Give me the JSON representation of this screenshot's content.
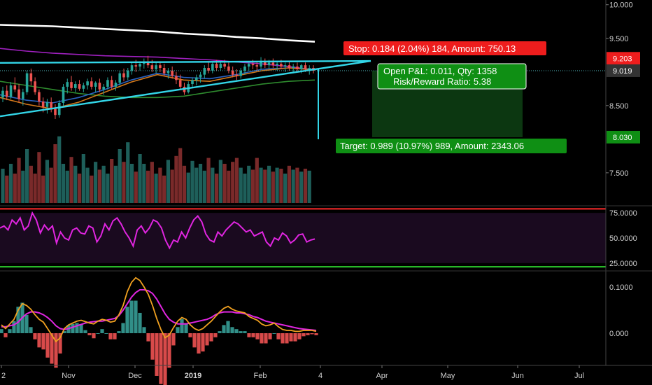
{
  "chart_data": {
    "type": "candlestick",
    "price_axis": {
      "ticks": [
        7.5,
        8.5,
        9.5,
        10.0
      ],
      "tick_labels": [
        "7.500",
        "8.500",
        "9.500",
        "10.000"
      ],
      "range": [
        7.03,
        10.07
      ]
    },
    "last_price": {
      "value": 9.019,
      "label": "9.019"
    },
    "stop_level": {
      "value": 9.203,
      "label": "9.203"
    },
    "target_level": {
      "value": 8.03,
      "label": "8.030"
    },
    "time_axis": {
      "labels": [
        "2",
        "Nov",
        "Dec",
        "2019",
        "Feb",
        "4",
        "Apr",
        "May",
        "Jun",
        "Jul"
      ],
      "bold": [
        "2019"
      ]
    },
    "position": {
      "stop_text": "Stop: 0.184 (2.04%) 184, Amount: 750.13",
      "pnl_text": "Open P&L: 0.011, Qty: 1358",
      "rr_text": "Risk/Reward Ratio: 5.38",
      "target_text": "Target: 0.989 (10.97%) 989, Amount: 2343.06",
      "entry": 9.019,
      "stop": 9.203,
      "target": 8.03
    },
    "candles": [
      {
        "o": 8.62,
        "h": 8.78,
        "l": 8.55,
        "c": 8.72
      },
      {
        "o": 8.72,
        "h": 8.8,
        "l": 8.58,
        "c": 8.63
      },
      {
        "o": 8.63,
        "h": 8.85,
        "l": 8.6,
        "c": 8.8
      },
      {
        "o": 8.8,
        "h": 8.92,
        "l": 8.7,
        "c": 8.74
      },
      {
        "o": 8.74,
        "h": 8.82,
        "l": 8.55,
        "c": 8.6
      },
      {
        "o": 8.6,
        "h": 8.75,
        "l": 8.5,
        "c": 8.7
      },
      {
        "o": 8.7,
        "h": 9.02,
        "l": 8.66,
        "c": 8.98
      },
      {
        "o": 8.98,
        "h": 9.05,
        "l": 8.8,
        "c": 8.86
      },
      {
        "o": 8.86,
        "h": 8.92,
        "l": 8.66,
        "c": 8.7
      },
      {
        "o": 8.7,
        "h": 8.74,
        "l": 8.5,
        "c": 8.56
      },
      {
        "o": 8.56,
        "h": 8.62,
        "l": 8.4,
        "c": 8.48
      },
      {
        "o": 8.48,
        "h": 8.6,
        "l": 8.38,
        "c": 8.55
      },
      {
        "o": 8.55,
        "h": 8.62,
        "l": 8.4,
        "c": 8.45
      },
      {
        "o": 8.45,
        "h": 8.52,
        "l": 8.3,
        "c": 8.36
      },
      {
        "o": 8.36,
        "h": 8.58,
        "l": 8.32,
        "c": 8.54
      },
      {
        "o": 8.54,
        "h": 8.82,
        "l": 8.5,
        "c": 8.78
      },
      {
        "o": 8.78,
        "h": 8.9,
        "l": 8.68,
        "c": 8.85
      },
      {
        "o": 8.85,
        "h": 8.94,
        "l": 8.72,
        "c": 8.76
      },
      {
        "o": 8.76,
        "h": 8.86,
        "l": 8.7,
        "c": 8.82
      },
      {
        "o": 8.82,
        "h": 8.88,
        "l": 8.72,
        "c": 8.75
      },
      {
        "o": 8.75,
        "h": 8.84,
        "l": 8.7,
        "c": 8.8
      },
      {
        "o": 8.8,
        "h": 8.9,
        "l": 8.74,
        "c": 8.86
      },
      {
        "o": 8.86,
        "h": 8.92,
        "l": 8.74,
        "c": 8.78
      },
      {
        "o": 8.78,
        "h": 8.86,
        "l": 8.7,
        "c": 8.84
      },
      {
        "o": 8.84,
        "h": 8.9,
        "l": 8.7,
        "c": 8.74
      },
      {
        "o": 8.74,
        "h": 8.82,
        "l": 8.66,
        "c": 8.78
      },
      {
        "o": 8.78,
        "h": 8.92,
        "l": 8.74,
        "c": 8.88
      },
      {
        "o": 8.88,
        "h": 8.94,
        "l": 8.74,
        "c": 8.78
      },
      {
        "o": 8.78,
        "h": 8.88,
        "l": 8.72,
        "c": 8.84
      },
      {
        "o": 8.84,
        "h": 9.02,
        "l": 8.8,
        "c": 8.98
      },
      {
        "o": 8.98,
        "h": 9.05,
        "l": 8.86,
        "c": 8.92
      },
      {
        "o": 8.92,
        "h": 9.06,
        "l": 8.88,
        "c": 9.02
      },
      {
        "o": 9.02,
        "h": 9.14,
        "l": 8.96,
        "c": 9.1
      },
      {
        "o": 9.1,
        "h": 9.18,
        "l": 9.0,
        "c": 9.08
      },
      {
        "o": 9.08,
        "h": 9.16,
        "l": 9.02,
        "c": 9.12
      },
      {
        "o": 9.12,
        "h": 9.2,
        "l": 9.05,
        "c": 9.14
      },
      {
        "o": 9.14,
        "h": 9.24,
        "l": 9.06,
        "c": 9.1
      },
      {
        "o": 9.1,
        "h": 9.18,
        "l": 9.0,
        "c": 9.04
      },
      {
        "o": 9.04,
        "h": 9.14,
        "l": 8.98,
        "c": 9.1
      },
      {
        "o": 9.1,
        "h": 9.16,
        "l": 9.0,
        "c": 9.06
      },
      {
        "o": 9.06,
        "h": 9.12,
        "l": 8.94,
        "c": 8.98
      },
      {
        "o": 8.98,
        "h": 9.06,
        "l": 8.9,
        "c": 9.02
      },
      {
        "o": 9.02,
        "h": 9.08,
        "l": 8.9,
        "c": 8.94
      },
      {
        "o": 8.94,
        "h": 9.0,
        "l": 8.82,
        "c": 8.88
      },
      {
        "o": 8.88,
        "h": 8.96,
        "l": 8.74,
        "c": 8.78
      },
      {
        "o": 8.78,
        "h": 8.84,
        "l": 8.66,
        "c": 8.7
      },
      {
        "o": 8.7,
        "h": 8.86,
        "l": 8.68,
        "c": 8.82
      },
      {
        "o": 8.82,
        "h": 8.92,
        "l": 8.76,
        "c": 8.88
      },
      {
        "o": 8.88,
        "h": 8.96,
        "l": 8.8,
        "c": 8.92
      },
      {
        "o": 8.92,
        "h": 9.0,
        "l": 8.84,
        "c": 8.96
      },
      {
        "o": 8.96,
        "h": 9.1,
        "l": 8.9,
        "c": 9.06
      },
      {
        "o": 9.06,
        "h": 9.14,
        "l": 8.98,
        "c": 9.02
      },
      {
        "o": 9.02,
        "h": 9.14,
        "l": 8.98,
        "c": 9.12
      },
      {
        "o": 9.12,
        "h": 9.18,
        "l": 9.02,
        "c": 9.06
      },
      {
        "o": 9.06,
        "h": 9.16,
        "l": 9.02,
        "c": 9.12
      },
      {
        "o": 9.12,
        "h": 9.18,
        "l": 9.04,
        "c": 9.08
      },
      {
        "o": 9.08,
        "h": 9.14,
        "l": 8.98,
        "c": 9.02
      },
      {
        "o": 9.02,
        "h": 9.08,
        "l": 8.92,
        "c": 8.96
      },
      {
        "o": 8.96,
        "h": 9.04,
        "l": 8.88,
        "c": 8.94
      },
      {
        "o": 8.94,
        "h": 9.06,
        "l": 8.9,
        "c": 9.02
      },
      {
        "o": 9.02,
        "h": 9.12,
        "l": 8.96,
        "c": 9.08
      },
      {
        "o": 9.08,
        "h": 9.16,
        "l": 9.02,
        "c": 9.12
      },
      {
        "o": 9.12,
        "h": 9.18,
        "l": 9.04,
        "c": 9.1
      },
      {
        "o": 9.1,
        "h": 9.16,
        "l": 9.02,
        "c": 9.08
      },
      {
        "o": 9.08,
        "h": 9.22,
        "l": 9.04,
        "c": 9.16
      },
      {
        "o": 9.16,
        "h": 9.2,
        "l": 9.06,
        "c": 9.1
      },
      {
        "o": 9.1,
        "h": 9.18,
        "l": 9.04,
        "c": 9.14
      },
      {
        "o": 9.14,
        "h": 9.2,
        "l": 9.06,
        "c": 9.1
      },
      {
        "o": 9.1,
        "h": 9.16,
        "l": 9.02,
        "c": 9.12
      },
      {
        "o": 9.12,
        "h": 9.18,
        "l": 9.04,
        "c": 9.08
      },
      {
        "o": 9.08,
        "h": 9.14,
        "l": 9.0,
        "c": 9.1
      },
      {
        "o": 9.1,
        "h": 9.16,
        "l": 9.02,
        "c": 9.06
      },
      {
        "o": 9.06,
        "h": 9.12,
        "l": 8.98,
        "c": 9.08
      },
      {
        "o": 9.08,
        "h": 9.14,
        "l": 9.0,
        "c": 9.04
      },
      {
        "o": 9.04,
        "h": 9.12,
        "l": 8.98,
        "c": 9.1
      },
      {
        "o": 9.1,
        "h": 9.14,
        "l": 9.0,
        "c": 9.04
      },
      {
        "o": 9.04,
        "h": 9.1,
        "l": 8.96,
        "c": 9.06
      },
      {
        "o": 9.06,
        "h": 9.1,
        "l": 8.98,
        "c": 9.02
      }
    ],
    "volume": [
      0.35,
      0.28,
      0.4,
      0.3,
      0.46,
      0.33,
      0.55,
      0.38,
      0.3,
      0.52,
      0.28,
      0.44,
      0.36,
      0.6,
      0.68,
      0.4,
      0.33,
      0.47,
      0.38,
      0.3,
      0.5,
      0.36,
      0.28,
      0.42,
      0.34,
      0.38,
      0.3,
      0.45,
      0.38,
      0.55,
      0.42,
      0.62,
      0.4,
      0.32,
      0.5,
      0.4,
      0.33,
      0.42,
      0.3,
      0.36,
      0.28,
      0.44,
      0.34,
      0.48,
      0.56,
      0.38,
      0.31,
      0.43,
      0.36,
      0.4,
      0.33,
      0.46,
      0.36,
      0.3,
      0.44,
      0.4,
      0.33,
      0.42,
      0.46,
      0.36,
      0.3,
      0.38,
      0.34,
      0.46,
      0.36,
      0.34,
      0.38,
      0.32,
      0.36,
      0.35,
      0.3,
      0.38,
      0.34,
      0.36,
      0.32,
      0.35,
      0.33
    ],
    "ma_series": [
      {
        "color": "#ffffff",
        "values": [
          9.7,
          9.69,
          9.68,
          9.66,
          9.64,
          9.62,
          9.6,
          9.57,
          9.55,
          9.52,
          9.5,
          9.47,
          9.45
        ]
      },
      {
        "color": "#a020c0",
        "values": [
          9.35,
          9.31,
          9.28,
          9.26,
          9.24,
          9.23,
          9.22,
          9.2,
          9.18,
          9.15,
          9.12,
          9.08,
          9.03
        ]
      },
      {
        "color": "#2e8b2e",
        "values": [
          8.86,
          8.8,
          8.74,
          8.68,
          8.64,
          8.62,
          8.62,
          8.64,
          8.7,
          8.76,
          8.82,
          8.86,
          8.88
        ]
      },
      {
        "color": "#2a62c0",
        "values": [
          8.66,
          8.58,
          8.54,
          8.62,
          8.74,
          8.88,
          8.98,
          8.92,
          8.9,
          8.96,
          9.04,
          9.06,
          9.04
        ]
      },
      {
        "color": "#d4791b",
        "values": [
          8.62,
          8.52,
          8.45,
          8.55,
          8.7,
          8.85,
          8.96,
          8.88,
          8.86,
          8.94,
          9.02,
          9.06,
          9.03
        ]
      }
    ],
    "trendlines": [
      {
        "color": "#33d6e8",
        "from": [
          0,
          9.135
        ],
        "to": [
          530,
          9.163
        ]
      },
      {
        "color": "#33d6e8",
        "from": [
          0,
          8.34
        ],
        "to": [
          530,
          9.163
        ]
      }
    ],
    "rsi": {
      "ticks": [
        75,
        50,
        25
      ],
      "tick_labels": [
        "75.0000",
        "50.0000",
        "25.0000"
      ],
      "upper_color": "#ff2a2a",
      "lower_color": "#2ecc2e",
      "line_color": "#e025e0",
      "values": [
        60,
        62,
        58,
        68,
        64,
        70,
        58,
        62,
        75,
        68,
        55,
        63,
        58,
        62,
        45,
        56,
        50,
        48,
        58,
        60,
        55,
        54,
        62,
        60,
        46,
        52,
        64,
        58,
        67,
        70,
        64,
        56,
        50,
        42,
        58,
        62,
        55,
        60,
        68,
        66,
        60,
        48,
        40,
        48,
        46,
        56,
        50,
        60,
        68,
        72,
        66,
        54,
        48,
        46,
        56,
        52,
        58,
        62,
        66,
        64,
        60,
        56,
        58,
        52,
        54,
        56,
        46,
        42,
        50,
        48,
        55,
        52,
        45,
        48,
        53,
        54,
        46,
        48,
        49
      ]
    },
    "macd": {
      "ticks": [
        0.1,
        0.0
      ],
      "tick_labels": [
        "0.1000",
        "0.000"
      ],
      "macd_color": "#f0a020",
      "signal_color": "#e025e0",
      "hist_pos_color": "#3aa8a0",
      "hist_neg_color": "#f05252",
      "macd": [
        0.018,
        0.01,
        0.02,
        0.03,
        0.05,
        0.064,
        0.06,
        0.052,
        0.04,
        0.03,
        0.024,
        0.01,
        -0.004,
        -0.018,
        -0.01,
        0.01,
        0.018,
        0.022,
        0.026,
        0.028,
        0.025,
        0.022,
        0.02,
        0.026,
        0.03,
        0.028,
        0.024,
        0.026,
        0.04,
        0.06,
        0.09,
        0.11,
        0.12,
        0.114,
        0.1,
        0.084,
        0.06,
        0.032,
        0.008,
        -0.01,
        -0.004,
        0.012,
        0.026,
        0.034,
        0.03,
        0.018,
        0.01,
        0.006,
        0.01,
        0.018,
        0.026,
        0.036,
        0.046,
        0.054,
        0.058,
        0.052,
        0.048,
        0.046,
        0.044,
        0.036,
        0.032,
        0.028,
        0.02,
        0.016,
        0.018,
        0.022,
        0.014,
        0.008,
        0.006,
        0.006,
        0.004,
        0.004,
        0.006,
        0.006,
        0.006,
        0.004
      ],
      "signal": [
        0.014,
        0.014,
        0.016,
        0.018,
        0.024,
        0.034,
        0.042,
        0.046,
        0.046,
        0.044,
        0.04,
        0.034,
        0.026,
        0.016,
        0.01,
        0.008,
        0.01,
        0.013,
        0.016,
        0.019,
        0.022,
        0.024,
        0.025,
        0.026,
        0.026,
        0.028,
        0.03,
        0.032,
        0.038,
        0.05,
        0.064,
        0.078,
        0.088,
        0.094,
        0.094,
        0.092,
        0.086,
        0.074,
        0.058,
        0.042,
        0.03,
        0.024,
        0.02,
        0.02,
        0.02,
        0.022,
        0.024,
        0.026,
        0.028,
        0.03,
        0.034,
        0.04,
        0.044,
        0.046,
        0.046,
        0.046,
        0.044,
        0.044,
        0.042,
        0.04,
        0.036,
        0.034,
        0.03,
        0.026,
        0.024,
        0.022,
        0.02,
        0.018,
        0.016,
        0.014,
        0.012,
        0.01,
        0.009,
        0.008,
        0.007,
        0.006
      ]
    }
  }
}
